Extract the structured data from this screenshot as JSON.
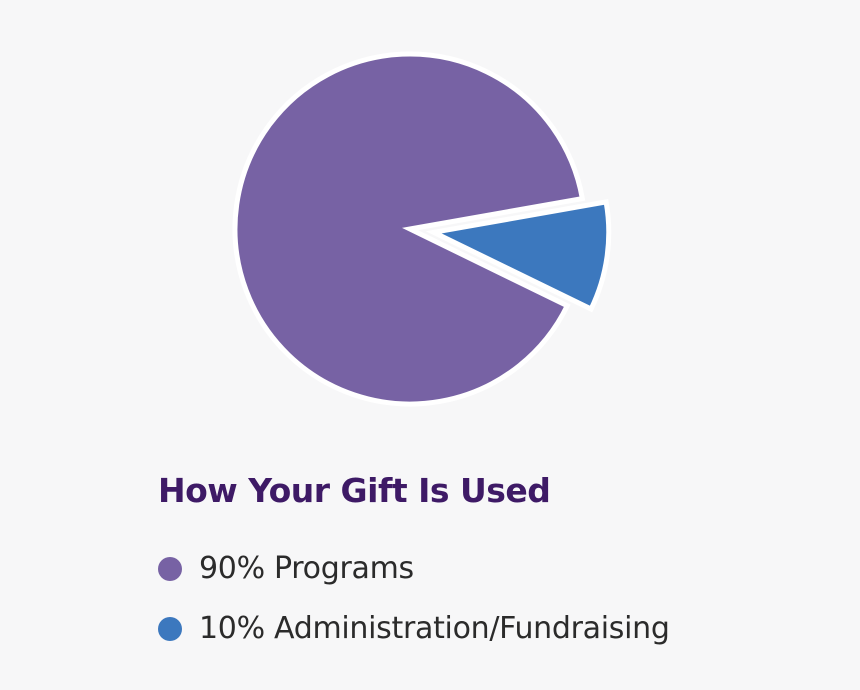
{
  "chart_data": {
    "type": "pie",
    "title": "How Your Gift Is Used",
    "slices": [
      {
        "label": "90% Programs",
        "value": 90,
        "color": "#7762a4",
        "exploded": false
      },
      {
        "label": "10% Administration/Fundraising",
        "value": 10,
        "color": "#3c78be",
        "exploded": true
      }
    ],
    "start_angle_deg": 10,
    "direction": "counterclockwise",
    "legend_position": "bottom-left",
    "slice_separator_color": "#ffffff"
  }
}
